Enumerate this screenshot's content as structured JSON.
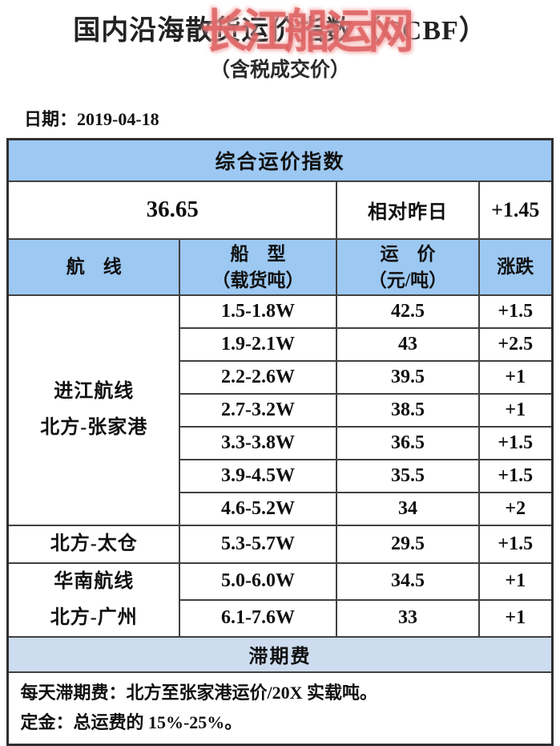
{
  "header": {
    "title": "国内沿海散货运价指数（CCBF）",
    "subtitle": "（含税成交价）",
    "watermark": "长江船运网",
    "date_label": "日期：",
    "date_value": "2019-04-18"
  },
  "colors": {
    "header_blue": "#9cc8f2",
    "demurrage_blue": "#cddcee",
    "watermark_red": "#db5858",
    "border_dark": "#414141"
  },
  "table": {
    "summary": {
      "header": "综合运价指数",
      "index_value": "36.65",
      "relative_label": "相对昨日",
      "relative_change": "+1.45"
    },
    "columns": {
      "route": "航　线",
      "ship_l1": "船　型",
      "ship_l2": "（载货吨）",
      "price_l1": "运　价",
      "price_l2": "（元/吨）",
      "change": "涨跌"
    },
    "groups": [
      {
        "route_l1": "进江航线",
        "route_l2": "北方-张家港",
        "rows": [
          [
            "1.5-1.8W",
            "42.5",
            "+1.5"
          ],
          [
            "1.9-2.1W",
            "43",
            "+2.5"
          ],
          [
            "2.2-2.6W",
            "39.5",
            "+1"
          ],
          [
            "2.7-3.2W",
            "38.5",
            "+1"
          ],
          [
            "3.3-3.8W",
            "36.5",
            "+1.5"
          ],
          [
            "3.9-4.5W",
            "35.5",
            "+1.5"
          ],
          [
            "4.6-5.2W",
            "34",
            "+2"
          ]
        ]
      },
      {
        "route_l1": "北方-太仓",
        "rows": [
          [
            "5.3-5.7W",
            "29.5",
            "+1.5"
          ]
        ]
      },
      {
        "route_l1": "华南航线",
        "route_l2": "北方-广州",
        "rows": [
          [
            "5.0-6.0W",
            "34.5",
            "+1"
          ],
          [
            "6.1-7.6W",
            "33",
            "+1"
          ]
        ]
      }
    ],
    "demurrage": {
      "header": "滞期费",
      "line1": "每天滞期费：北方至张家港运价/20X 实载吨。",
      "line2": "定金：总运费的 15%-25%。"
    }
  }
}
